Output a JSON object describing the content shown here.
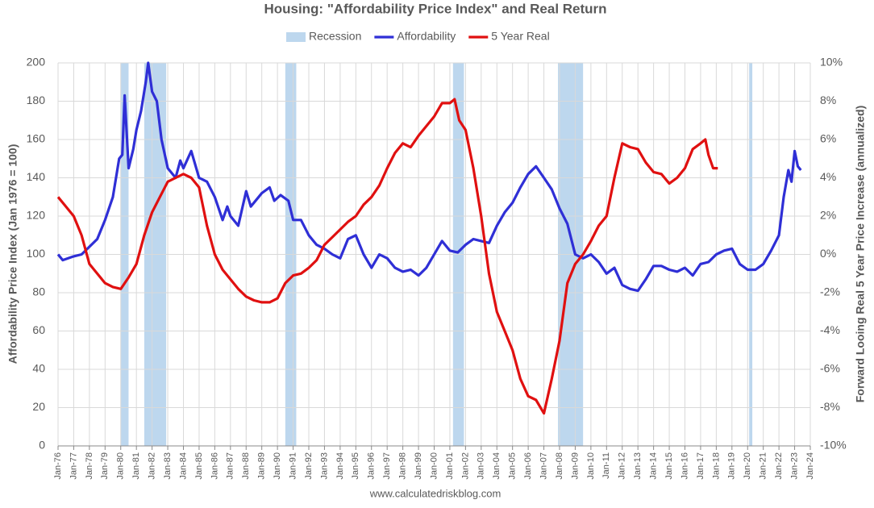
{
  "chart_data": {
    "type": "line",
    "title": "Housing: \"Affordability Price Index\" and Real Return",
    "ylabel": "Affordability Price Index (Jan 1976 = 100)",
    "y2label": "Forward Looing Real 5 Year Price Increase (annualized)",
    "source": "www.calculatedriskblog.com",
    "grid": true,
    "xlim": [
      1976,
      2024
    ],
    "xticks": [
      {
        "value": 1976,
        "label": "Jan-76"
      },
      {
        "value": 1977,
        "label": "Jan-77"
      },
      {
        "value": 1978,
        "label": "Jan-78"
      },
      {
        "value": 1979,
        "label": "Jan-79"
      },
      {
        "value": 1980,
        "label": "Jan-80"
      },
      {
        "value": 1981,
        "label": "Jan-81"
      },
      {
        "value": 1982,
        "label": "Jan-82"
      },
      {
        "value": 1983,
        "label": "Jan-83"
      },
      {
        "value": 1984,
        "label": "Jan-84"
      },
      {
        "value": 1985,
        "label": "Jan-85"
      },
      {
        "value": 1986,
        "label": "Jan-86"
      },
      {
        "value": 1987,
        "label": "Jan-87"
      },
      {
        "value": 1988,
        "label": "Jan-88"
      },
      {
        "value": 1989,
        "label": "Jan-89"
      },
      {
        "value": 1990,
        "label": "Jan-90"
      },
      {
        "value": 1991,
        "label": "Jan-91"
      },
      {
        "value": 1992,
        "label": "Jan-92"
      },
      {
        "value": 1993,
        "label": "Jan-93"
      },
      {
        "value": 1994,
        "label": "Jan-94"
      },
      {
        "value": 1995,
        "label": "Jan-95"
      },
      {
        "value": 1996,
        "label": "Jan-96"
      },
      {
        "value": 1997,
        "label": "Jan-97"
      },
      {
        "value": 1998,
        "label": "Jan-98"
      },
      {
        "value": 1999,
        "label": "Jan-99"
      },
      {
        "value": 2000,
        "label": "Jan-00"
      },
      {
        "value": 2001,
        "label": "Jan-01"
      },
      {
        "value": 2002,
        "label": "Jan-02"
      },
      {
        "value": 2003,
        "label": "Jan-03"
      },
      {
        "value": 2004,
        "label": "Jan-04"
      },
      {
        "value": 2005,
        "label": "Jan-05"
      },
      {
        "value": 2006,
        "label": "Jan-06"
      },
      {
        "value": 2007,
        "label": "Jan-07"
      },
      {
        "value": 2008,
        "label": "Jan-08"
      },
      {
        "value": 2009,
        "label": "Jan-09"
      },
      {
        "value": 2010,
        "label": "Jan-10"
      },
      {
        "value": 2011,
        "label": "Jan-11"
      },
      {
        "value": 2012,
        "label": "Jan-12"
      },
      {
        "value": 2013,
        "label": "Jan-13"
      },
      {
        "value": 2014,
        "label": "Jan-14"
      },
      {
        "value": 2015,
        "label": "Jan-15"
      },
      {
        "value": 2016,
        "label": "Jan-16"
      },
      {
        "value": 2017,
        "label": "Jan-17"
      },
      {
        "value": 2018,
        "label": "Jan-18"
      },
      {
        "value": 2019,
        "label": "Jan-19"
      },
      {
        "value": 2020,
        "label": "Jan-20"
      },
      {
        "value": 2021,
        "label": "Jan-21"
      },
      {
        "value": 2022,
        "label": "Jan-22"
      },
      {
        "value": 2023,
        "label": "Jan-23"
      },
      {
        "value": 2024,
        "label": "Jan-24"
      }
    ],
    "ylim": [
      0,
      200
    ],
    "yticks": [
      0,
      20,
      40,
      60,
      80,
      100,
      120,
      140,
      160,
      180,
      200
    ],
    "y2lim": [
      -10,
      10
    ],
    "y2ticks": [
      {
        "value": -10,
        "label": "-10%"
      },
      {
        "value": -8,
        "label": "-8%"
      },
      {
        "value": -6,
        "label": "-6%"
      },
      {
        "value": -4,
        "label": "-4%"
      },
      {
        "value": -2,
        "label": "-2%"
      },
      {
        "value": 0,
        "label": "0%"
      },
      {
        "value": 2,
        "label": "2%"
      },
      {
        "value": 4,
        "label": "4%"
      },
      {
        "value": 6,
        "label": "6%"
      },
      {
        "value": 8,
        "label": "8%"
      },
      {
        "value": 10,
        "label": "10%"
      }
    ],
    "recession": {
      "name": "Recession",
      "color": "#bdd7ee",
      "spans": [
        [
          1980.0,
          1980.5
        ],
        [
          1981.5,
          1982.9
        ],
        [
          1990.5,
          1991.2
        ],
        [
          2001.2,
          2001.9
        ],
        [
          2007.9,
          2009.5
        ],
        [
          2020.1,
          2020.3
        ]
      ]
    },
    "series": [
      {
        "name": "Affordability",
        "color": "#2f2fd6",
        "axis": "y",
        "x": [
          1976,
          1976.3,
          1977,
          1977.5,
          1978,
          1978.5,
          1979,
          1979.5,
          1979.9,
          1980.1,
          1980.25,
          1980.5,
          1980.8,
          1981,
          1981.3,
          1981.6,
          1981.75,
          1982,
          1982.3,
          1982.6,
          1983,
          1983.5,
          1983.8,
          1984,
          1984.5,
          1985,
          1985.5,
          1986,
          1986.5,
          1986.8,
          1987,
          1987.5,
          1988,
          1988.3,
          1988.8,
          1989,
          1989.5,
          1989.8,
          1990.2,
          1990.7,
          1991,
          1991.5,
          1992,
          1992.5,
          1993,
          1993.5,
          1994,
          1994.5,
          1995,
          1995.5,
          1996,
          1996.5,
          1997,
          1997.5,
          1998,
          1998.5,
          1999,
          1999.5,
          2000,
          2000.5,
          2001,
          2001.5,
          2002,
          2002.5,
          2003,
          2003.5,
          2004,
          2004.5,
          2005,
          2005.5,
          2006,
          2006.5,
          2007,
          2007.5,
          2008,
          2008.5,
          2009,
          2009.5,
          2010,
          2010.5,
          2011,
          2011.5,
          2012,
          2012.5,
          2013,
          2013.5,
          2014,
          2014.5,
          2015,
          2015.5,
          2016,
          2016.5,
          2017,
          2017.5,
          2018,
          2018.5,
          2019,
          2019.5,
          2020,
          2020.5,
          2021,
          2021.5,
          2022,
          2022.3,
          2022.6,
          2022.8,
          2023,
          2023.2,
          2023.4
        ],
        "values": [
          100,
          97,
          99,
          100,
          104,
          108,
          118,
          130,
          150,
          152,
          183,
          145,
          155,
          165,
          175,
          190,
          200,
          185,
          180,
          160,
          145,
          140,
          149,
          145,
          154,
          140,
          138,
          130,
          118,
          125,
          120,
          115,
          133,
          125,
          130,
          132,
          135,
          128,
          131,
          128,
          118,
          118,
          110,
          105,
          103,
          100,
          98,
          108,
          110,
          100,
          93,
          100,
          98,
          93,
          91,
          92,
          89,
          93,
          100,
          107,
          102,
          101,
          105,
          108,
          107,
          106,
          115,
          122,
          127,
          135,
          142,
          146,
          140,
          134,
          124,
          116,
          100,
          98,
          100,
          96,
          90,
          93,
          84,
          82,
          81,
          87,
          94,
          94,
          92,
          91,
          93,
          89,
          95,
          96,
          100,
          102,
          103,
          95,
          92,
          92,
          95,
          102,
          110,
          130,
          144,
          138,
          154,
          146,
          144
        ]
      },
      {
        "name": "5 Year Real",
        "color": "#e01010",
        "axis": "y2",
        "x": [
          1976,
          1976.5,
          1977,
          1977.5,
          1978,
          1978.5,
          1979,
          1979.5,
          1980,
          1980.5,
          1981,
          1981.5,
          1982,
          1982.5,
          1983,
          1983.5,
          1984,
          1984.5,
          1985,
          1985.5,
          1986,
          1986.5,
          1987,
          1987.5,
          1988,
          1988.5,
          1989,
          1989.5,
          1990,
          1990.5,
          1991,
          1991.5,
          1992,
          1992.5,
          1993,
          1993.5,
          1994,
          1994.5,
          1995,
          1995.5,
          1996,
          1996.5,
          1997,
          1997.5,
          1998,
          1998.5,
          1999,
          1999.5,
          2000,
          2000.5,
          2001,
          2001.3,
          2001.6,
          2002,
          2002.5,
          2003,
          2003.5,
          2004,
          2004.5,
          2005,
          2005.5,
          2006,
          2006.5,
          2007,
          2007.5,
          2008,
          2008.5,
          2009,
          2009.5,
          2010,
          2010.5,
          2011,
          2011.5,
          2012,
          2012.5,
          2013,
          2013.5,
          2014,
          2014.5,
          2015,
          2015.5,
          2016,
          2016.5,
          2017,
          2017.3,
          2017.5,
          2017.8,
          2018.1
        ],
        "values": [
          3,
          2.5,
          2,
          1,
          -0.5,
          -1,
          -1.5,
          -1.7,
          -1.8,
          -1.2,
          -0.5,
          1,
          2.2,
          3,
          3.8,
          4,
          4.2,
          4,
          3.5,
          1.5,
          0,
          -0.8,
          -1.3,
          -1.8,
          -2.2,
          -2.4,
          -2.5,
          -2.5,
          -2.3,
          -1.5,
          -1.1,
          -1,
          -0.7,
          -0.3,
          0.5,
          0.9,
          1.3,
          1.7,
          2,
          2.6,
          3,
          3.6,
          4.5,
          5.3,
          5.8,
          5.6,
          6.2,
          6.7,
          7.2,
          7.9,
          7.9,
          8.1,
          7,
          6.5,
          4.5,
          2,
          -1,
          -3,
          -4,
          -5,
          -6.5,
          -7.4,
          -7.6,
          -8.3,
          -6.5,
          -4.5,
          -1.5,
          -0.5,
          0,
          0.7,
          1.5,
          2,
          4,
          5.8,
          5.6,
          5.5,
          4.8,
          4.3,
          4.2,
          3.7,
          4,
          4.5,
          5.5,
          5.8,
          6,
          5.2,
          4.5,
          4.5
        ]
      }
    ]
  }
}
